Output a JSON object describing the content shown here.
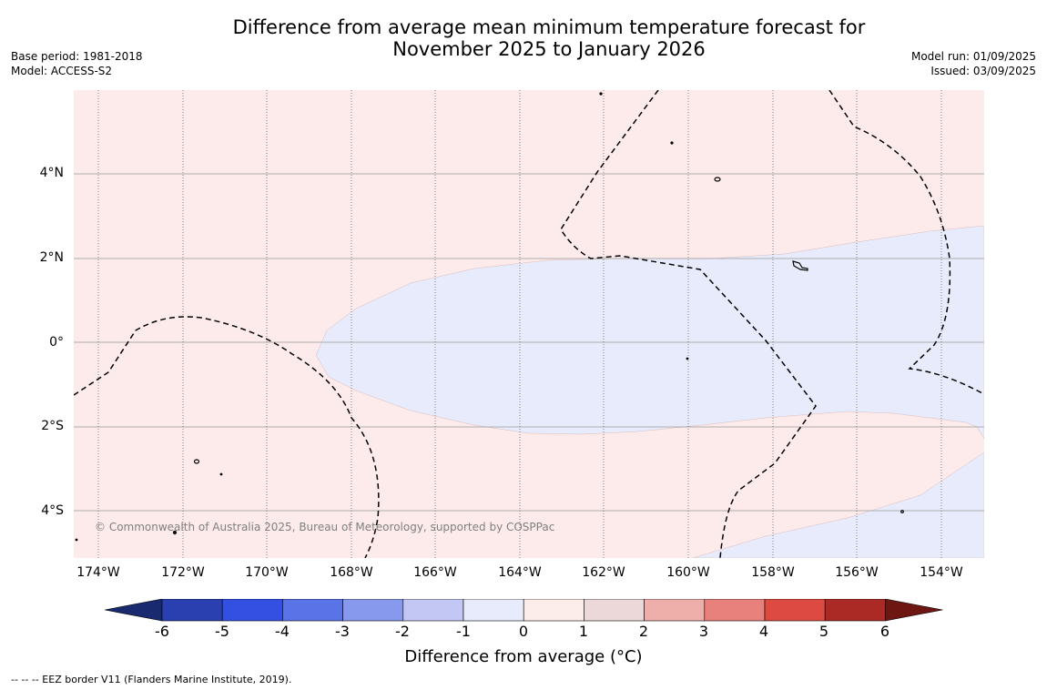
{
  "title_line1": "Difference from average mean minimum temperature forecast for",
  "title_line2": "November 2025 to January 2026",
  "base_period": "Base period: 1981-2018",
  "model": "Model: ACCESS-S2",
  "model_run": "Model run: 01/09/2025",
  "issued": "Issued: 03/09/2025",
  "lat_labels": [
    "4°N",
    "2°N",
    "0°",
    "2°S",
    "4°S"
  ],
  "lon_labels": [
    "174°W",
    "172°W",
    "170°W",
    "168°W",
    "166°W",
    "164°W",
    "162°W",
    "160°W",
    "158°W",
    "156°W",
    "154°W"
  ],
  "credit": "© Commonwealth of Australia 2025, Bureau of Meteorology, supported by COSPPac",
  "colorbar": {
    "label": "Difference from average (°C)",
    "ticks": [
      "-6",
      "-5",
      "-4",
      "-3",
      "-2",
      "-1",
      "0",
      "1",
      "2",
      "3",
      "4",
      "5",
      "6"
    ],
    "colors": [
      "#2a3fb0",
      "#3350e3",
      "#5a73e6",
      "#8799ec",
      "#c2c8f3",
      "#e8ebfb",
      "#fcecea",
      "#ecd8d8",
      "#eeaeaa",
      "#e8817b",
      "#dd4a41",
      "#ac2a25"
    ],
    "under_color": "#1a2a6e",
    "over_color": "#6e1612"
  },
  "map_colors": {
    "warm_fill": "#fcebea",
    "cool_fill": "#e8ebfb"
  },
  "footnote": "--  --  -- EEZ border V11 (Flanders Marine Institute, 2019)."
}
